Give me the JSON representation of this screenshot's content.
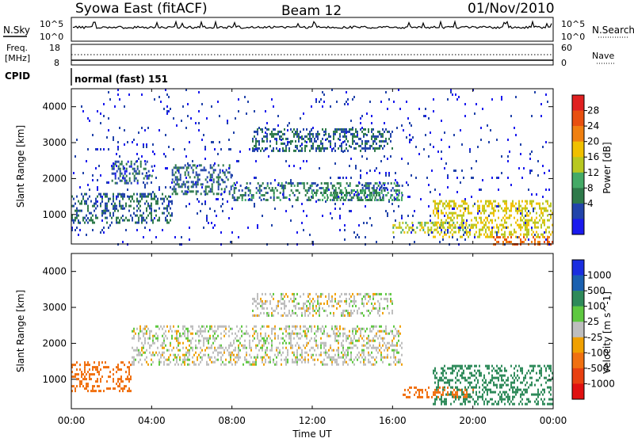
{
  "header": {
    "station": "Syowa East (fitACF)",
    "beam": "Beam 12",
    "date": "01/Nov/2010"
  },
  "noise_panel": {
    "left_label": "N.Sky",
    "right_label": "N.Search",
    "left_ticks": [
      "10^5",
      "10^0"
    ],
    "right_ticks": [
      "10^5",
      "10^0"
    ]
  },
  "freq_panel": {
    "left_label_line1": "Freq.",
    "left_label_line2": "[MHz]",
    "right_label": "Nave",
    "left_ticks": [
      "18",
      "8"
    ],
    "right_ticks": [
      "60",
      "0"
    ]
  },
  "cpid": {
    "label": "CPID",
    "value": "normal (fast) 151"
  },
  "x_axis": {
    "label": "Time UT",
    "ticks": [
      "00:00",
      "04:00",
      "08:00",
      "12:00",
      "16:00",
      "20:00",
      "00:00"
    ]
  },
  "chart_data": [
    {
      "type": "heatmap",
      "name": "power",
      "xlabel": "Time UT",
      "ylabel": "Slant Range [km]",
      "x_range_hours": [
        0,
        24
      ],
      "ylim": [
        180,
        4500
      ],
      "y_ticks": [
        1000,
        2000,
        3000,
        4000
      ],
      "colorbar": {
        "label": "Power [dB]",
        "ticks": [
          "4",
          "8",
          "12",
          "16",
          "20",
          "24",
          "28"
        ],
        "colors": [
          "#1a1aee",
          "#2244aa",
          "#2e7a4a",
          "#44aa66",
          "#b8c820",
          "#f0c000",
          "#f08010",
          "#e85010",
          "#e02020"
        ]
      },
      "regions": [
        {
          "t": [
            0,
            5
          ],
          "r": [
            800,
            1600
          ],
          "level": 8
        },
        {
          "t": [
            2,
            4
          ],
          "r": [
            1900,
            2500
          ],
          "level": 7
        },
        {
          "t": [
            5,
            8
          ],
          "r": [
            1600,
            2400
          ],
          "level": 8
        },
        {
          "t": [
            8,
            16.5
          ],
          "r": [
            1400,
            1900
          ],
          "level": 9
        },
        {
          "t": [
            9,
            16
          ],
          "r": [
            2800,
            3400
          ],
          "level": 8
        },
        {
          "t": [
            12,
            16.5
          ],
          "r": [
            1400,
            1700
          ],
          "level": 12
        },
        {
          "t": [
            16,
            20
          ],
          "r": [
            500,
            800
          ],
          "level": 18
        },
        {
          "t": [
            18,
            24
          ],
          "r": [
            400,
            1400
          ],
          "level": 20
        },
        {
          "t": [
            21,
            24
          ],
          "r": [
            200,
            400
          ],
          "level": 28
        },
        {
          "t": [
            0,
            24
          ],
          "r": [
            180,
            4500
          ],
          "level": 4
        }
      ]
    },
    {
      "type": "heatmap",
      "name": "velocity",
      "xlabel": "Time UT",
      "ylabel": "Slant Range [km]",
      "x_range_hours": [
        0,
        24
      ],
      "ylim": [
        180,
        4500
      ],
      "y_ticks": [
        1000,
        2000,
        3000,
        4000
      ],
      "colorbar": {
        "label": "Velocity [m s^-1]",
        "ticks": [
          "1000",
          "500",
          "100",
          "25",
          "-25",
          "-100",
          "-500",
          "-1000"
        ],
        "colors": [
          "#1a2ee0",
          "#1a60b0",
          "#2e8a5a",
          "#5ec840",
          "#bebebe",
          "#f0a000",
          "#f07010",
          "#e84010",
          "#e01010"
        ]
      },
      "regions": [
        {
          "t": [
            0,
            3
          ],
          "r": [
            700,
            1500
          ],
          "level": -300
        },
        {
          "t": [
            3,
            16.5
          ],
          "r": [
            1400,
            2500
          ],
          "level": 0
        },
        {
          "t": [
            9,
            16
          ],
          "r": [
            2800,
            3400
          ],
          "level": 0
        },
        {
          "t": [
            16.5,
            20
          ],
          "r": [
            500,
            800
          ],
          "level": -200
        },
        {
          "t": [
            18,
            24
          ],
          "r": [
            300,
            1400
          ],
          "level": 300
        }
      ]
    }
  ]
}
